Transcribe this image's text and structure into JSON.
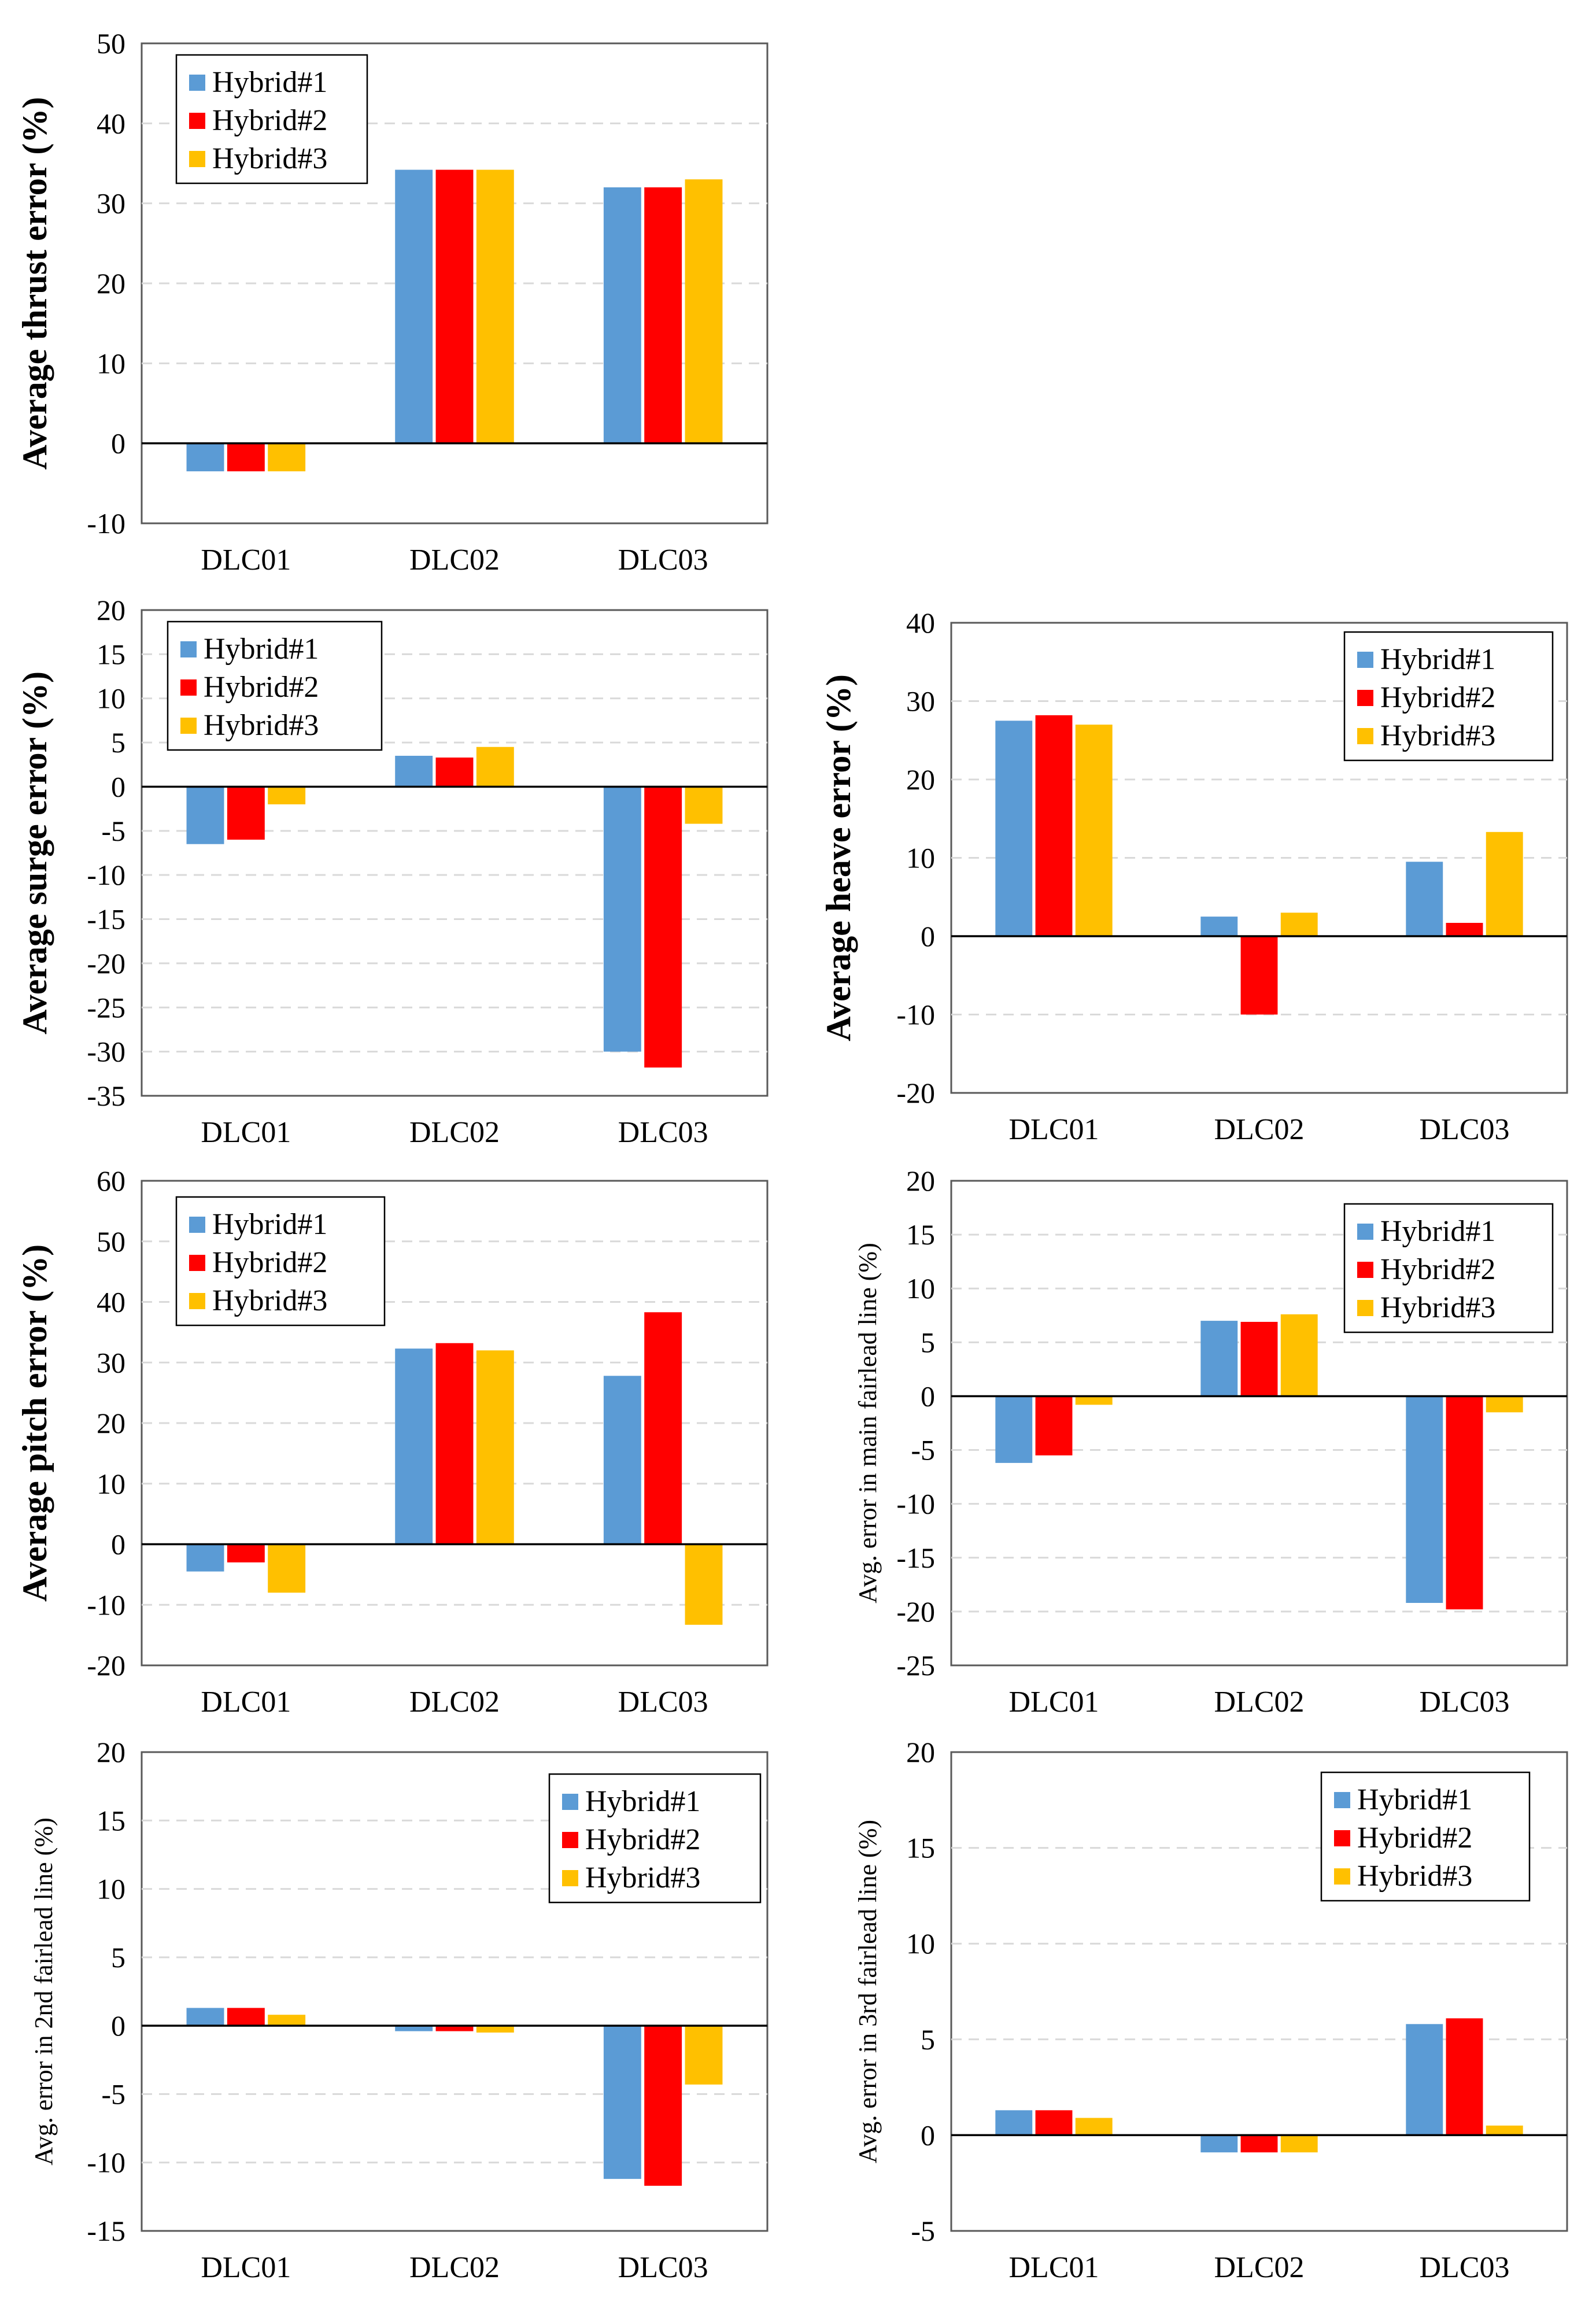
{
  "colors": {
    "Hybrid#1": "#5b9bd5",
    "Hybrid#2": "#ff0000",
    "Hybrid#3": "#ffc000",
    "grid": "#d9d9d9",
    "axis": "#000000",
    "frame": "#595959"
  },
  "chart_data": [
    {
      "type": "bar",
      "ylabel": "Average thrust error (%)",
      "categories": [
        "DLC01",
        "DLC02",
        "DLC03"
      ],
      "ylim": [
        -10,
        50
      ],
      "yticks": [
        -10,
        0,
        10,
        20,
        30,
        40,
        50
      ],
      "legend_position": "top-left",
      "series": [
        {
          "name": "Hybrid#1",
          "values": [
            -3.5,
            34.2,
            32.0
          ]
        },
        {
          "name": "Hybrid#2",
          "values": [
            -3.5,
            34.2,
            32.0
          ]
        },
        {
          "name": "Hybrid#3",
          "values": [
            -3.5,
            34.2,
            33.0
          ]
        }
      ]
    },
    {
      "type": "bar",
      "ylabel": "Average surge error (%)",
      "categories": [
        "DLC01",
        "DLC02",
        "DLC03"
      ],
      "ylim": [
        -35,
        20
      ],
      "yticks": [
        -35,
        -30,
        -25,
        -20,
        -15,
        -10,
        -5,
        0,
        5,
        10,
        15,
        20
      ],
      "legend_position": "top-left",
      "series": [
        {
          "name": "Hybrid#1",
          "values": [
            -6.5,
            3.5,
            -30.0
          ]
        },
        {
          "name": "Hybrid#2",
          "values": [
            -6.0,
            3.3,
            -31.8
          ]
        },
        {
          "name": "Hybrid#3",
          "values": [
            -2.0,
            4.5,
            -4.2
          ]
        }
      ]
    },
    {
      "type": "bar",
      "ylabel": "Average heave error (%)",
      "categories": [
        "DLC01",
        "DLC02",
        "DLC03"
      ],
      "ylim": [
        -20,
        40
      ],
      "yticks": [
        -20,
        -10,
        0,
        10,
        20,
        30,
        40
      ],
      "legend_position": "top-right",
      "series": [
        {
          "name": "Hybrid#1",
          "values": [
            27.5,
            2.5,
            9.5
          ]
        },
        {
          "name": "Hybrid#2",
          "values": [
            28.2,
            -10.0,
            1.7
          ]
        },
        {
          "name": "Hybrid#3",
          "values": [
            27.0,
            3.0,
            13.3
          ]
        }
      ]
    },
    {
      "type": "bar",
      "ylabel": "Average pitch error (%)",
      "categories": [
        "DLC01",
        "DLC02",
        "DLC03"
      ],
      "ylim": [
        -20,
        60
      ],
      "yticks": [
        -20,
        -10,
        0,
        10,
        20,
        30,
        40,
        50,
        60
      ],
      "legend_position": "top-left",
      "series": [
        {
          "name": "Hybrid#1",
          "values": [
            -4.5,
            32.3,
            27.8
          ]
        },
        {
          "name": "Hybrid#2",
          "values": [
            -3.0,
            33.2,
            38.3
          ]
        },
        {
          "name": "Hybrid#3",
          "values": [
            -8.0,
            32.0,
            -13.3
          ]
        }
      ]
    },
    {
      "type": "bar",
      "ylabel": "Avg. error in main fairlead line (%)",
      "categories": [
        "DLC01",
        "DLC02",
        "DLC03"
      ],
      "ylim": [
        -25,
        20
      ],
      "yticks": [
        -25,
        -20,
        -15,
        -10,
        -5,
        0,
        5,
        10,
        15,
        20
      ],
      "legend_position": "top-right",
      "series": [
        {
          "name": "Hybrid#1",
          "values": [
            -6.2,
            7.0,
            -19.2
          ]
        },
        {
          "name": "Hybrid#2",
          "values": [
            -5.5,
            6.9,
            -19.8
          ]
        },
        {
          "name": "Hybrid#3",
          "values": [
            -0.8,
            7.6,
            -1.5
          ]
        }
      ]
    },
    {
      "type": "bar",
      "ylabel": "Avg. error in 2nd fairlead line (%)",
      "categories": [
        "DLC01",
        "DLC02",
        "DLC03"
      ],
      "ylim": [
        -15,
        20
      ],
      "yticks": [
        -15,
        -10,
        -5,
        0,
        5,
        10,
        15,
        20
      ],
      "legend_position": "top-right",
      "series": [
        {
          "name": "Hybrid#1",
          "values": [
            1.3,
            -0.4,
            -11.2
          ]
        },
        {
          "name": "Hybrid#2",
          "values": [
            1.3,
            -0.4,
            -11.7
          ]
        },
        {
          "name": "Hybrid#3",
          "values": [
            0.8,
            -0.5,
            -4.3
          ]
        }
      ]
    },
    {
      "type": "bar",
      "ylabel": "Avg. error in 3rd fairlead line (%)",
      "categories": [
        "DLC01",
        "DLC02",
        "DLC03"
      ],
      "ylim": [
        -5,
        20
      ],
      "yticks": [
        -5,
        0,
        5,
        10,
        15,
        20
      ],
      "legend_position": "top-right",
      "series": [
        {
          "name": "Hybrid#1",
          "values": [
            1.3,
            -0.9,
            5.8
          ]
        },
        {
          "name": "Hybrid#2",
          "values": [
            1.3,
            -0.9,
            6.1
          ]
        },
        {
          "name": "Hybrid#3",
          "values": [
            0.9,
            -0.9,
            0.5
          ]
        }
      ]
    }
  ]
}
